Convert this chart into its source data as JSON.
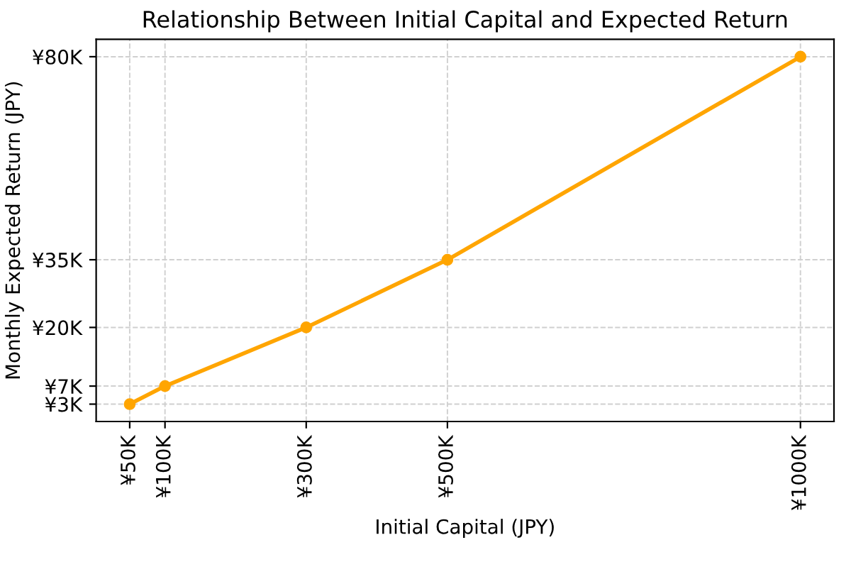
{
  "chart_data": {
    "type": "line",
    "title": "Relationship Between Initial Capital and Expected Return",
    "xlabel": "Initial Capital (JPY)",
    "ylabel": "Monthly Expected Return (JPY)",
    "x": [
      50000,
      100000,
      300000,
      500000,
      1000000
    ],
    "series": [
      {
        "color": "#ffa500",
        "values": [
          3000,
          7000,
          20000,
          35000,
          80000
        ]
      }
    ],
    "xlim": [
      2500,
      1047500
    ],
    "ylim": [
      -850,
      83850
    ],
    "xticks": [
      {
        "value": 50000,
        "label": "¥50K"
      },
      {
        "value": 100000,
        "label": "¥100K"
      },
      {
        "value": 300000,
        "label": "¥300K"
      },
      {
        "value": 500000,
        "label": "¥500K"
      },
      {
        "value": 1000000,
        "label": "¥1000K"
      }
    ],
    "yticks": [
      {
        "value": 3000,
        "label": "¥3K"
      },
      {
        "value": 7000,
        "label": "¥7K"
      },
      {
        "value": 20000,
        "label": "¥20K"
      },
      {
        "value": 35000,
        "label": "¥35K"
      },
      {
        "value": 80000,
        "label": "¥80K"
      }
    ],
    "grid": true,
    "marker": "circle",
    "line_style": "solid"
  }
}
